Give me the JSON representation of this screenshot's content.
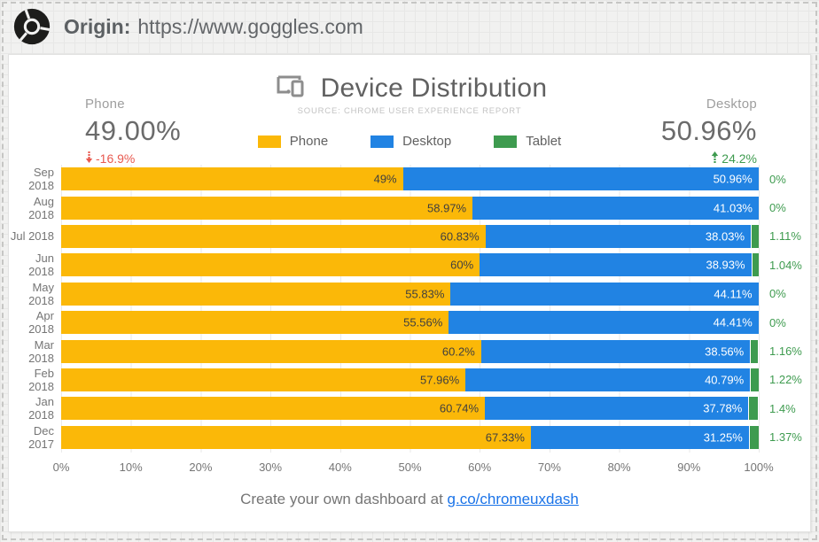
{
  "origin_bar": {
    "label": "Origin:",
    "url": "https://www.goggles.com"
  },
  "card": {
    "title": "Device Distribution",
    "subtitle": "SOURCE: CHROME USER EXPERIENCE REPORT",
    "left_stat": {
      "label": "Phone",
      "value": "49.00%",
      "change": "-16.9%",
      "direction": "down",
      "color": "#e8594f"
    },
    "right_stat": {
      "label": "Desktop",
      "value": "50.96%",
      "change": "24.2%",
      "direction": "up",
      "color": "#3e9b4f"
    },
    "footer": {
      "text": "Create your own dashboard at ",
      "link": "g.co/chromeuxdash"
    }
  },
  "chart_data": {
    "type": "bar",
    "orientation": "horizontal",
    "stacked": true,
    "title": "Device Distribution",
    "categories": [
      "Sep 2018",
      "Aug 2018",
      "Jul 2018",
      "Jun 2018",
      "May 2018",
      "Apr 2018",
      "Mar 2018",
      "Feb 2018",
      "Jan 2018",
      "Dec 2017"
    ],
    "series": [
      {
        "name": "Phone",
        "color": "#fbb808",
        "values": [
          49,
          58.97,
          60.83,
          60,
          55.83,
          55.56,
          60.2,
          57.96,
          60.74,
          67.33
        ],
        "labels": [
          "49%",
          "58.97%",
          "60.83%",
          "60%",
          "55.83%",
          "55.56%",
          "60.2%",
          "57.96%",
          "60.74%",
          "67.33%"
        ]
      },
      {
        "name": "Desktop",
        "color": "#2183e3",
        "values": [
          50.96,
          41.03,
          38.03,
          38.93,
          44.11,
          44.41,
          38.56,
          40.79,
          37.78,
          31.25
        ],
        "labels": [
          "50.96%",
          "41.03%",
          "38.03%",
          "38.93%",
          "44.11%",
          "44.41%",
          "38.56%",
          "40.79%",
          "37.78%",
          "31.25%"
        ]
      },
      {
        "name": "Tablet",
        "color": "#3e9b4f",
        "values": [
          0,
          0,
          1.11,
          1.04,
          0,
          0,
          1.16,
          1.22,
          1.4,
          1.37
        ],
        "labels": [
          "0%",
          "0%",
          "1.11%",
          "1.04%",
          "0%",
          "0%",
          "1.16%",
          "1.22%",
          "1.4%",
          "1.37%"
        ]
      }
    ],
    "x_ticks": [
      "0%",
      "10%",
      "20%",
      "30%",
      "40%",
      "50%",
      "60%",
      "70%",
      "80%",
      "90%",
      "100%"
    ],
    "xlim": [
      0,
      100
    ],
    "grid": true,
    "legend_position": "top-center"
  }
}
